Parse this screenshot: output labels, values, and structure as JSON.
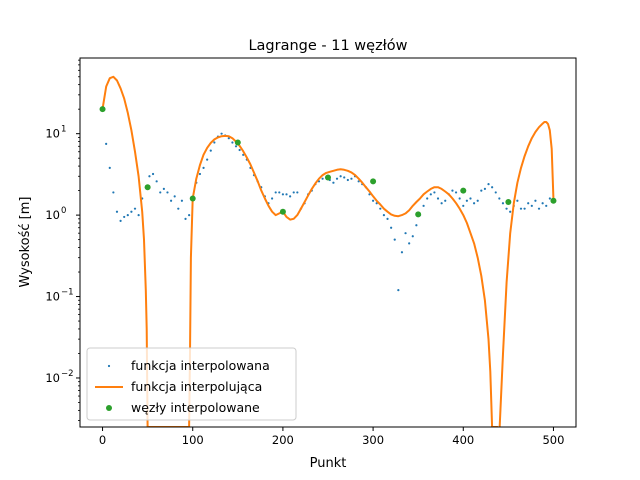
{
  "chart_data": {
    "type": "line",
    "title": "Lagrange - 11 węzłów",
    "xlabel": "Punkt",
    "ylabel": "Wysokość [m]",
    "xscale": "linear",
    "yscale": "log",
    "xlim": [
      -25,
      525
    ],
    "ylim": [
      0.0025,
      85
    ],
    "grid": false,
    "legend_position": "lower-left",
    "x_ticks": [
      {
        "value": 0,
        "label": "0"
      },
      {
        "value": 100,
        "label": "100"
      },
      {
        "value": 200,
        "label": "200"
      },
      {
        "value": 300,
        "label": "300"
      },
      {
        "value": 400,
        "label": "400"
      },
      {
        "value": 500,
        "label": "500"
      }
    ],
    "y_ticks": [
      {
        "value": 0.01,
        "label": "10",
        "exp": "−2"
      },
      {
        "value": 0.1,
        "label": "10",
        "exp": "−1"
      },
      {
        "value": 1,
        "label": "10",
        "exp": "0"
      },
      {
        "value": 10,
        "label": "10",
        "exp": "1"
      }
    ],
    "series": [
      {
        "name": "funkcja interpolowana",
        "style": "points",
        "color": "#1f77b4",
        "x": [
          0,
          4,
          8,
          12,
          16,
          20,
          24,
          28,
          32,
          36,
          40,
          44,
          48,
          52,
          56,
          60,
          64,
          68,
          72,
          76,
          80,
          84,
          88,
          92,
          96,
          100,
          104,
          108,
          112,
          116,
          120,
          124,
          128,
          132,
          136,
          140,
          144,
          148,
          152,
          156,
          160,
          164,
          168,
          172,
          176,
          180,
          184,
          188,
          192,
          196,
          200,
          204,
          208,
          212,
          216,
          220,
          224,
          228,
          232,
          236,
          240,
          244,
          248,
          252,
          256,
          260,
          264,
          268,
          272,
          276,
          280,
          284,
          288,
          292,
          296,
          300,
          304,
          308,
          312,
          316,
          320,
          324,
          328,
          332,
          336,
          340,
          344,
          348,
          352,
          356,
          360,
          364,
          368,
          372,
          376,
          380,
          384,
          388,
          392,
          396,
          400,
          404,
          408,
          412,
          416,
          420,
          424,
          428,
          432,
          436,
          440,
          444,
          448,
          452,
          456,
          460,
          464,
          468,
          472,
          476,
          480,
          484,
          488,
          492,
          496,
          500
        ],
        "y": [
          20,
          7.5,
          3.8,
          1.9,
          1.1,
          0.85,
          0.95,
          1.0,
          1.1,
          1.2,
          1.0,
          1.6,
          2.2,
          3.0,
          3.2,
          2.6,
          1.9,
          2.1,
          1.9,
          1.5,
          1.7,
          1.2,
          1.5,
          0.9,
          1.0,
          1.6,
          2.5,
          3.2,
          3.8,
          4.8,
          6.2,
          7.8,
          9.2,
          10.0,
          9.5,
          8.8,
          7.8,
          7.0,
          6.3,
          5.5,
          4.8,
          3.8,
          3.1,
          2.6,
          2.2,
          1.7,
          1.4,
          1.6,
          1.9,
          1.9,
          1.8,
          1.8,
          1.7,
          1.9,
          1.9,
          1.2,
          1.4,
          1.8,
          2.0,
          2.4,
          2.6,
          2.8,
          2.9,
          2.7,
          2.5,
          2.8,
          3.0,
          2.9,
          2.7,
          2.8,
          3.0,
          2.6,
          2.4,
          2.2,
          1.8,
          1.5,
          1.4,
          1.2,
          1.0,
          0.9,
          0.7,
          0.5,
          0.12,
          0.35,
          0.6,
          0.45,
          0.55,
          0.75,
          1.0,
          1.3,
          1.6,
          1.8,
          1.9,
          1.6,
          1.4,
          1.5,
          1.8,
          2.0,
          1.9,
          1.6,
          1.3,
          1.5,
          1.6,
          1.4,
          1.5,
          2.0,
          2.1,
          2.4,
          2.2,
          1.9,
          1.6,
          1.4,
          1.2,
          1.1,
          1.3,
          1.5,
          1.2,
          1.2,
          1.4,
          1.3,
          1.5,
          1.2,
          1.4,
          1.3,
          1.6,
          1.5
        ]
      },
      {
        "name": "funkcja interpolująca",
        "style": "line",
        "color": "#ff7f0e",
        "x": [
          0,
          4,
          8,
          12,
          16,
          20,
          24,
          28,
          32,
          36,
          40,
          44,
          46,
          48,
          49,
          50,
          51,
          52,
          54,
          56,
          60,
          64,
          68,
          72,
          76,
          80,
          84,
          88,
          92,
          94,
          96,
          97,
          98,
          100,
          104,
          108,
          112,
          116,
          120,
          124,
          128,
          132,
          136,
          140,
          144,
          148,
          152,
          156,
          160,
          164,
          168,
          172,
          176,
          180,
          184,
          188,
          192,
          196,
          200,
          204,
          208,
          212,
          216,
          220,
          224,
          228,
          232,
          236,
          240,
          244,
          248,
          252,
          256,
          260,
          264,
          268,
          272,
          276,
          280,
          284,
          288,
          292,
          296,
          300,
          304,
          308,
          312,
          316,
          320,
          324,
          328,
          332,
          336,
          340,
          344,
          348,
          352,
          356,
          360,
          364,
          368,
          372,
          376,
          380,
          384,
          388,
          392,
          396,
          400,
          404,
          408,
          412,
          416,
          420,
          424,
          428,
          430,
          432,
          434,
          436,
          438,
          440,
          444,
          448,
          452,
          456,
          460,
          464,
          468,
          472,
          476,
          480,
          484,
          488,
          490,
          492,
          494,
          496,
          498,
          500
        ],
        "y": [
          20,
          38,
          48,
          50,
          45,
          36,
          27,
          18,
          11,
          6,
          3,
          1.1,
          0.5,
          0.12,
          0.04,
          0.0025,
          0.0025,
          0.0025,
          0.0025,
          0.0025,
          0.0025,
          0.0025,
          0.0025,
          0.0025,
          0.0025,
          0.0025,
          0.0025,
          0.0025,
          0.0025,
          0.0025,
          0.0025,
          0.02,
          0.3,
          1.6,
          2.8,
          4.1,
          5.5,
          6.7,
          7.7,
          8.5,
          9.0,
          9.3,
          9.4,
          9.3,
          8.8,
          8.0,
          7.1,
          6.1,
          5.1,
          4.2,
          3.3,
          2.6,
          2.0,
          1.6,
          1.3,
          1.1,
          1.0,
          1.05,
          1.1,
          0.95,
          0.88,
          0.9,
          1.0,
          1.2,
          1.45,
          1.75,
          2.1,
          2.45,
          2.8,
          3.1,
          3.3,
          3.4,
          3.5,
          3.6,
          3.65,
          3.6,
          3.5,
          3.35,
          3.1,
          2.8,
          2.5,
          2.2,
          1.95,
          1.7,
          1.5,
          1.35,
          1.2,
          1.1,
          1.02,
          0.98,
          0.97,
          1.0,
          1.05,
          1.15,
          1.3,
          1.45,
          1.6,
          1.8,
          1.95,
          2.1,
          2.2,
          2.2,
          2.1,
          1.95,
          1.8,
          1.6,
          1.4,
          1.2,
          1.0,
          0.8,
          0.6,
          0.45,
          0.3,
          0.18,
          0.09,
          0.03,
          0.012,
          0.0025,
          0.0025,
          0.0025,
          0.0025,
          0.002,
          0.02,
          0.15,
          0.6,
          1.4,
          2.5,
          3.8,
          5.3,
          7.0,
          8.8,
          10.5,
          12.0,
          13.3,
          13.9,
          13.9,
          13.2,
          11.0,
          6.5,
          1.5
        ]
      },
      {
        "name": "węzły interpolowane",
        "style": "markers",
        "color": "#2ca02c",
        "x": [
          0,
          50,
          100,
          150,
          200,
          250,
          300,
          350,
          400,
          450,
          500
        ],
        "y": [
          20,
          2.2,
          1.6,
          7.8,
          1.1,
          2.9,
          2.6,
          1.02,
          2.0,
          1.45,
          1.5
        ]
      }
    ]
  }
}
